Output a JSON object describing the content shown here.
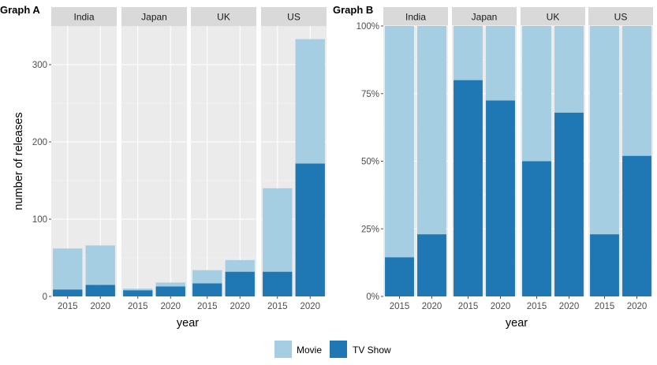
{
  "colors": {
    "movie": "#a6cee3",
    "tv_show": "#1f78b4"
  },
  "legend": [
    {
      "key": "movie",
      "label": "Movie"
    },
    {
      "key": "tv_show",
      "label": "TV Show"
    }
  ],
  "chart_data": [
    {
      "type": "bar",
      "stacked": true,
      "title": "Graph A",
      "xlabel": "year",
      "ylabel": "number of releases",
      "ylim": [
        0,
        350
      ],
      "yticks": [
        0,
        100,
        200,
        300
      ],
      "ytick_labels": [
        "0",
        "100",
        "200",
        "300"
      ],
      "facets": [
        "India",
        "Japan",
        "UK",
        "US"
      ],
      "categories": [
        "2015",
        "2020"
      ],
      "series": [
        {
          "name": "TV Show",
          "key": "tv_show",
          "values": {
            "India": [
              9,
              15
            ],
            "Japan": [
              8,
              13
            ],
            "UK": [
              17,
              32
            ],
            "US": [
              32,
              172
            ]
          }
        },
        {
          "name": "Movie",
          "key": "movie",
          "values": {
            "India": [
              53,
              51
            ],
            "Japan": [
              2,
              5
            ],
            "UK": [
              17,
              15
            ],
            "US": [
              108,
              161
            ]
          }
        }
      ],
      "grid": true
    },
    {
      "type": "bar",
      "stacked": true,
      "title": "Graph B",
      "xlabel": "year",
      "ylabel": "",
      "ylim": [
        0,
        1
      ],
      "yticks": [
        0,
        0.25,
        0.5,
        0.75,
        1
      ],
      "ytick_labels": [
        "0%",
        "25%",
        "50%",
        "75%",
        "100%"
      ],
      "facets": [
        "India",
        "Japan",
        "UK",
        "US"
      ],
      "categories": [
        "2015",
        "2020"
      ],
      "series": [
        {
          "name": "TV Show",
          "key": "tv_show",
          "values": {
            "India": [
              0.145,
              0.23
            ],
            "Japan": [
              0.8,
              0.725
            ],
            "UK": [
              0.5,
              0.68
            ],
            "US": [
              0.23,
              0.52
            ]
          }
        },
        {
          "name": "Movie",
          "key": "movie",
          "values": {
            "India": [
              0.855,
              0.77
            ],
            "Japan": [
              0.2,
              0.275
            ],
            "UK": [
              0.5,
              0.32
            ],
            "US": [
              0.77,
              0.48
            ]
          }
        }
      ],
      "grid": true
    }
  ]
}
